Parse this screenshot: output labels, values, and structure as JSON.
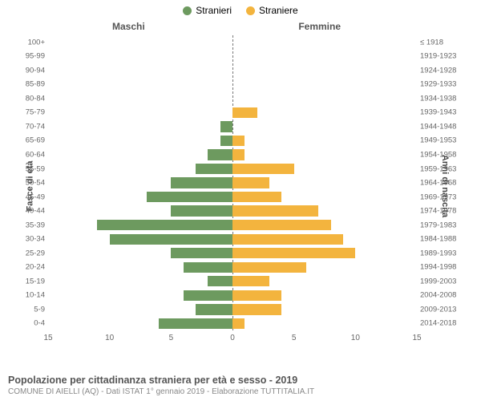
{
  "chart": {
    "type": "population-pyramid",
    "legend": {
      "male": {
        "label": "Stranieri",
        "color": "#6d9a5f"
      },
      "female": {
        "label": "Straniere",
        "color": "#f3b43e"
      }
    },
    "headers": {
      "left": "Maschi",
      "right": "Femmine"
    },
    "ylabels": {
      "left": "Fasce di età",
      "right": "Anni di nascita"
    },
    "xmax": 15,
    "xticks": [
      0,
      5,
      10,
      15
    ],
    "rows": [
      {
        "age": "100+",
        "male": 0,
        "female": 0,
        "year": "≤ 1918"
      },
      {
        "age": "95-99",
        "male": 0,
        "female": 0,
        "year": "1919-1923"
      },
      {
        "age": "90-94",
        "male": 0,
        "female": 0,
        "year": "1924-1928"
      },
      {
        "age": "85-89",
        "male": 0,
        "female": 0,
        "year": "1929-1933"
      },
      {
        "age": "80-84",
        "male": 0,
        "female": 0,
        "year": "1934-1938"
      },
      {
        "age": "75-79",
        "male": 0,
        "female": 2,
        "year": "1939-1943"
      },
      {
        "age": "70-74",
        "male": 1,
        "female": 0,
        "year": "1944-1948"
      },
      {
        "age": "65-69",
        "male": 1,
        "female": 1,
        "year": "1949-1953"
      },
      {
        "age": "60-64",
        "male": 2,
        "female": 1,
        "year": "1954-1958"
      },
      {
        "age": "55-59",
        "male": 3,
        "female": 5,
        "year": "1959-1963"
      },
      {
        "age": "50-54",
        "male": 5,
        "female": 3,
        "year": "1964-1968"
      },
      {
        "age": "45-49",
        "male": 7,
        "female": 4,
        "year": "1969-1973"
      },
      {
        "age": "40-44",
        "male": 5,
        "female": 7,
        "year": "1974-1978"
      },
      {
        "age": "35-39",
        "male": 11,
        "female": 8,
        "year": "1979-1983"
      },
      {
        "age": "30-34",
        "male": 10,
        "female": 9,
        "year": "1984-1988"
      },
      {
        "age": "25-29",
        "male": 5,
        "female": 10,
        "year": "1989-1993"
      },
      {
        "age": "20-24",
        "male": 4,
        "female": 6,
        "year": "1994-1998"
      },
      {
        "age": "15-19",
        "male": 2,
        "female": 3,
        "year": "1999-2003"
      },
      {
        "age": "10-14",
        "male": 4,
        "female": 4,
        "year": "2004-2008"
      },
      {
        "age": "5-9",
        "male": 3,
        "female": 4,
        "year": "2009-2013"
      },
      {
        "age": "0-4",
        "male": 6,
        "female": 1,
        "year": "2014-2018"
      }
    ]
  },
  "footer": {
    "title": "Popolazione per cittadinanza straniera per età e sesso - 2019",
    "subtitle": "COMUNE DI AIELLI (AQ) - Dati ISTAT 1° gennaio 2019 - Elaborazione TUTTITALIA.IT"
  },
  "style": {
    "background": "#ffffff",
    "gridDash": "#777777",
    "textColor": "#666666"
  }
}
